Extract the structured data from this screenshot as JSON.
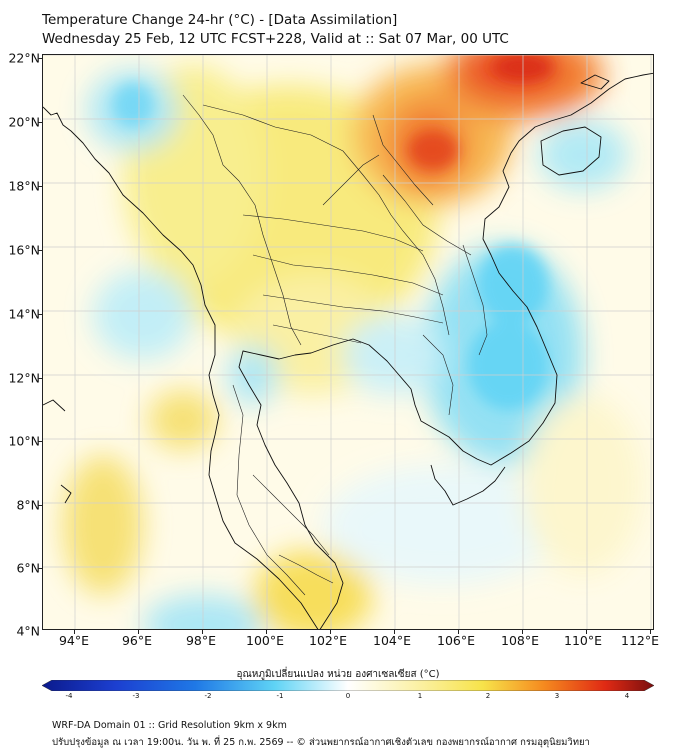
{
  "title_line1": "Temperature Change 24-hr (°C) - [Data Assimilation]",
  "title_line2": "Wednesday 25 Feb, 12 UTC FCST+228, Valid at :: Sat 07 Mar, 00 UTC",
  "map": {
    "lat_labels": [
      "22°N",
      "20°N",
      "18°N",
      "16°N",
      "14°N",
      "12°N",
      "10°N",
      "8°N",
      "6°N",
      "4°N"
    ],
    "lon_labels": [
      "94°E",
      "96°E",
      "98°E",
      "100°E",
      "102°E",
      "104°E",
      "106°E",
      "108°E",
      "110°E",
      "112°E"
    ],
    "lat_range": [
      4,
      22
    ],
    "lon_range": [
      93,
      112.2
    ]
  },
  "colorbar": {
    "label": "อุณหภูมิเปลี่ยนแปลง หน่วย องศาเซลเซียส (°C)",
    "ticks": [
      "-4",
      "-3",
      "-2",
      "-1",
      "0",
      "1",
      "2",
      "3",
      "4"
    ],
    "range": [
      -4,
      4
    ],
    "colors": {
      "cold_max": "#0b1a8c",
      "cold": "#1f78e6",
      "cool": "#5fd3f5",
      "neutral": "#ffffff",
      "warm": "#f7e34a",
      "hot": "#f58a1f",
      "hot_max": "#7a0f0f"
    }
  },
  "footer_line1": "WRF-DA Domain 01 :: Grid Resolution 9km x 9km",
  "footer_line2": "ปรับปรุงข้อมูล ณ เวลา 19:00น. วัน พ. ที่ 25 ก.พ. 2569 -- © ส่วนพยากรณ์อากาศเชิงตัวเลข กองพยากรณ์อากาศ กรมอุตุนิยมวิทยา"
}
